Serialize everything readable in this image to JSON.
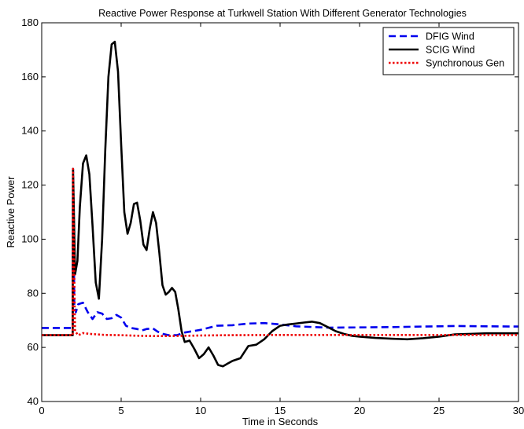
{
  "chart_data": {
    "type": "line",
    "title": "Reactive Power Response at Turkwell Station With Different Generator Technologies",
    "xlabel": "Time in Seconds",
    "ylabel": "Reactive Power",
    "xlim": [
      0,
      30
    ],
    "ylim": [
      40,
      180
    ],
    "xticks": [
      0,
      5,
      10,
      15,
      20,
      25,
      30
    ],
    "yticks": [
      40,
      60,
      80,
      100,
      120,
      140,
      160,
      180
    ],
    "grid": false,
    "legend_position": "top-right",
    "series": [
      {
        "name": "DFIG Wind",
        "color": "#0000ee",
        "dash": "dashed",
        "x": [
          0,
          1.95,
          1.97,
          2.0,
          2.05,
          2.15,
          2.3,
          2.6,
          2.9,
          3.2,
          3.5,
          3.8,
          4.1,
          4.4,
          4.7,
          5.0,
          5.3,
          5.6,
          6.0,
          6.3,
          6.6,
          7.0,
          7.3,
          7.6,
          8.0,
          8.5,
          9.0,
          10.0,
          11.0,
          12.0,
          13.0,
          14.0,
          15.0,
          16.0,
          18.0,
          20.0,
          22.0,
          24.0,
          26.0,
          28.0,
          30.0
        ],
        "y": [
          67.2,
          67.2,
          126,
          112,
          76,
          73,
          76,
          76.5,
          73,
          70.5,
          73,
          72.5,
          70.5,
          70.8,
          72,
          71,
          68,
          67.2,
          66.8,
          66.3,
          66.8,
          67,
          65.8,
          65,
          64.5,
          64.5,
          65.5,
          66.5,
          68,
          68.2,
          68.8,
          69,
          68.5,
          67.8,
          67.3,
          67.4,
          67.5,
          67.7,
          67.9,
          67.8,
          67.7
        ]
      },
      {
        "name": "SCIG Wind",
        "color": "#000000",
        "dash": "solid",
        "x": [
          0,
          1.95,
          1.97,
          2.0,
          2.1,
          2.25,
          2.4,
          2.6,
          2.8,
          3.0,
          3.2,
          3.4,
          3.6,
          3.8,
          4.0,
          4.2,
          4.4,
          4.6,
          4.8,
          5.0,
          5.2,
          5.4,
          5.6,
          5.8,
          6.0,
          6.2,
          6.4,
          6.6,
          6.8,
          7.0,
          7.2,
          7.4,
          7.6,
          7.8,
          8.0,
          8.2,
          8.4,
          8.6,
          8.8,
          9.0,
          9.3,
          9.6,
          9.9,
          10.2,
          10.5,
          10.8,
          11.1,
          11.4,
          11.7,
          12.0,
          12.5,
          13.0,
          13.5,
          14.0,
          14.5,
          15.0,
          15.5,
          16.0,
          16.5,
          17.0,
          17.5,
          18.0,
          18.5,
          19.0,
          19.5,
          20.0,
          21.0,
          22.0,
          23.0,
          24.0,
          25.0,
          26.0,
          27.0,
          28.0,
          29.0,
          30.0
        ],
        "y": [
          64.5,
          64.5,
          126,
          118,
          87,
          92,
          112,
          128,
          131,
          124,
          105,
          84,
          78,
          100,
          133,
          160,
          172,
          173,
          162,
          135,
          110,
          102,
          106,
          113,
          113.5,
          107,
          98,
          96,
          104,
          110,
          106,
          95,
          83,
          79.5,
          80.5,
          82,
          80.5,
          74,
          66,
          62,
          62.5,
          59.5,
          56,
          57.5,
          60,
          57,
          53.5,
          53,
          54,
          55,
          56,
          60.5,
          61,
          63,
          66,
          68,
          68.5,
          68.8,
          69.2,
          69.5,
          69,
          67.5,
          66,
          65,
          64.3,
          64,
          63.5,
          63.2,
          63,
          63.4,
          64,
          64.8,
          65,
          65.2,
          65.2,
          65.2
        ]
      },
      {
        "name": "Synchronous Gen",
        "color": "#ee0000",
        "dash": "dotted",
        "x": [
          0,
          1.95,
          1.97,
          2.0,
          2.1,
          2.3,
          2.6,
          3.0,
          4.0,
          5.0,
          6.0,
          7.0,
          8.0,
          10.0,
          12.0,
          15.0,
          18.0,
          20.0,
          25.0,
          30.0
        ],
        "y": [
          64.5,
          64.5,
          126,
          108,
          66,
          64.5,
          65.3,
          65,
          64.6,
          64.5,
          64.3,
          64.2,
          64.2,
          64.4,
          64.5,
          64.6,
          64.6,
          64.6,
          64.6,
          64.6
        ]
      }
    ]
  }
}
